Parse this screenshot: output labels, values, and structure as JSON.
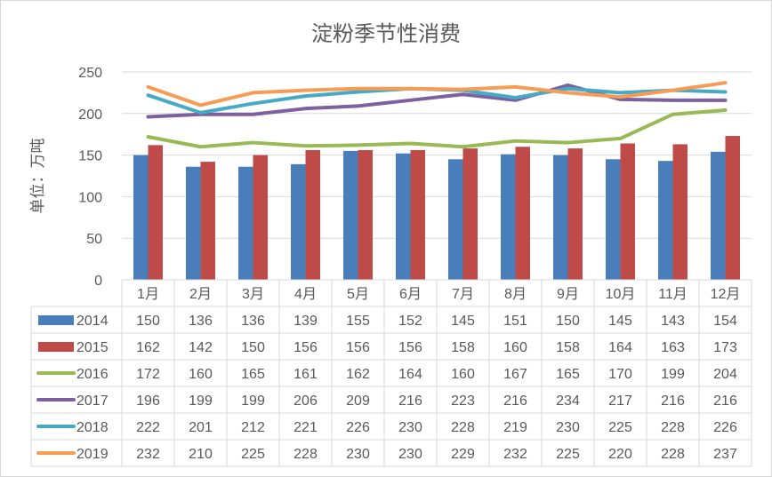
{
  "chart_data": {
    "type": "bar+line",
    "title": "淀粉季节性消费",
    "ylabel": "单位：万吨",
    "xlabel": "",
    "ylim": [
      0,
      250
    ],
    "yticks": [
      0,
      50,
      100,
      150,
      200,
      250
    ],
    "grid": true,
    "legend": "data-table",
    "categories": [
      "1月",
      "2月",
      "3月",
      "4月",
      "5月",
      "6月",
      "7月",
      "8月",
      "9月",
      "10月",
      "11月",
      "12月"
    ],
    "series": [
      {
        "name": "2014",
        "kind": "bar",
        "color": "#4a7ebb",
        "values": [
          150,
          136,
          136,
          139,
          155,
          152,
          145,
          151,
          150,
          145,
          143,
          154
        ]
      },
      {
        "name": "2015",
        "kind": "bar",
        "color": "#be4b48",
        "values": [
          162,
          142,
          150,
          156,
          156,
          156,
          158,
          160,
          158,
          164,
          163,
          173
        ]
      },
      {
        "name": "2016",
        "kind": "line",
        "color": "#98b954",
        "values": [
          172,
          160,
          165,
          161,
          162,
          164,
          160,
          167,
          165,
          170,
          199,
          204
        ]
      },
      {
        "name": "2017",
        "kind": "line",
        "color": "#7d60a0",
        "values": [
          196,
          199,
          199,
          206,
          209,
          216,
          223,
          216,
          234,
          217,
          216,
          216
        ]
      },
      {
        "name": "2018",
        "kind": "line",
        "color": "#46aac5",
        "values": [
          222,
          201,
          212,
          221,
          226,
          230,
          228,
          219,
          230,
          225,
          228,
          226
        ]
      },
      {
        "name": "2019",
        "kind": "line",
        "color": "#f59d56",
        "values": [
          232,
          210,
          225,
          228,
          230,
          230,
          229,
          232,
          225,
          220,
          228,
          237
        ]
      }
    ]
  }
}
